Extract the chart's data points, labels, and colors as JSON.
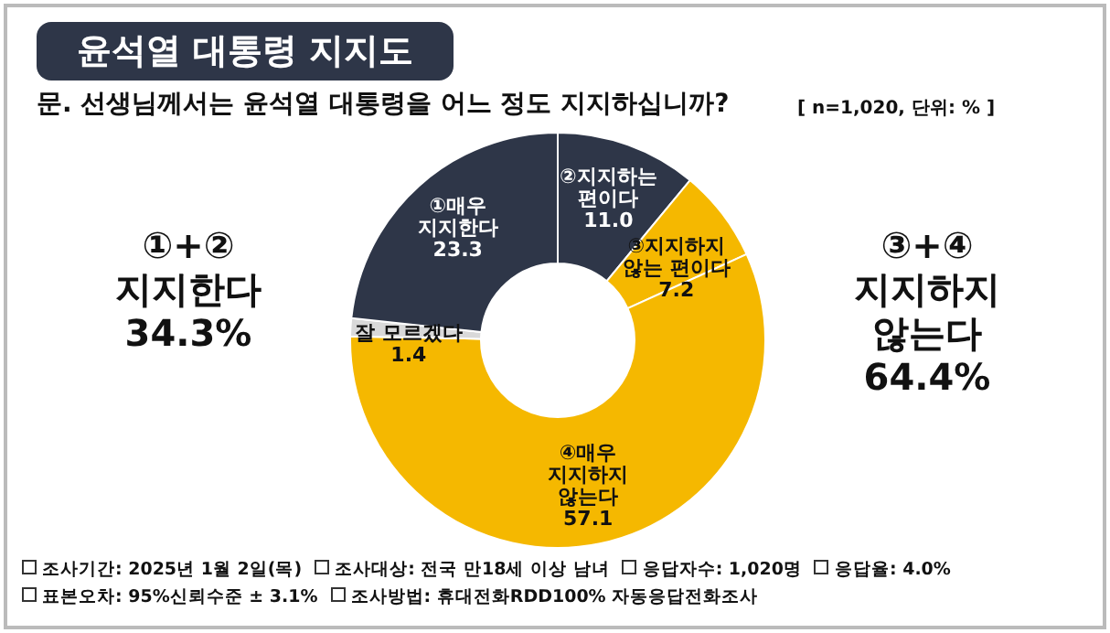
{
  "chart_data": {
    "type": "donut",
    "title": "윤석열 대통령 지지도",
    "subtitle": "문. 선생님께서는 윤석열 대통령을 어느 정도 지지하십니까?",
    "categories": [
      "②지지하는 편이다",
      "③지지하지 않는 편이다",
      "④매우 지지하지 않는다",
      "잘 모르겠다",
      "①매우 지지한다"
    ],
    "values": [
      11.0,
      7.2,
      57.1,
      1.4,
      23.3
    ],
    "colors": [
      "#2e3648",
      "#f5b800",
      "#f5b800",
      "#d9d9d9",
      "#2e3648"
    ],
    "value_labels": [
      "11.0",
      "7.2",
      "57.1",
      "1.4",
      "23.3"
    ],
    "legend": false,
    "annotations": [
      "[ n=1,020, 단위: % ]",
      "①+② 지지한다 34.3%",
      "③+④ 지지하지 않는다 64.4%",
      "조사기간: 2025년 1월 2일(목)",
      "조사대상: 전국 만18세 이상 남녀",
      "응답자수: 1,020명",
      "응답율: 4.0%",
      "표본오차: 95%신뢰수준 ± 3.1%",
      "조사방법: 휴대전화RDD100% 자동응답전화조사"
    ]
  }
}
